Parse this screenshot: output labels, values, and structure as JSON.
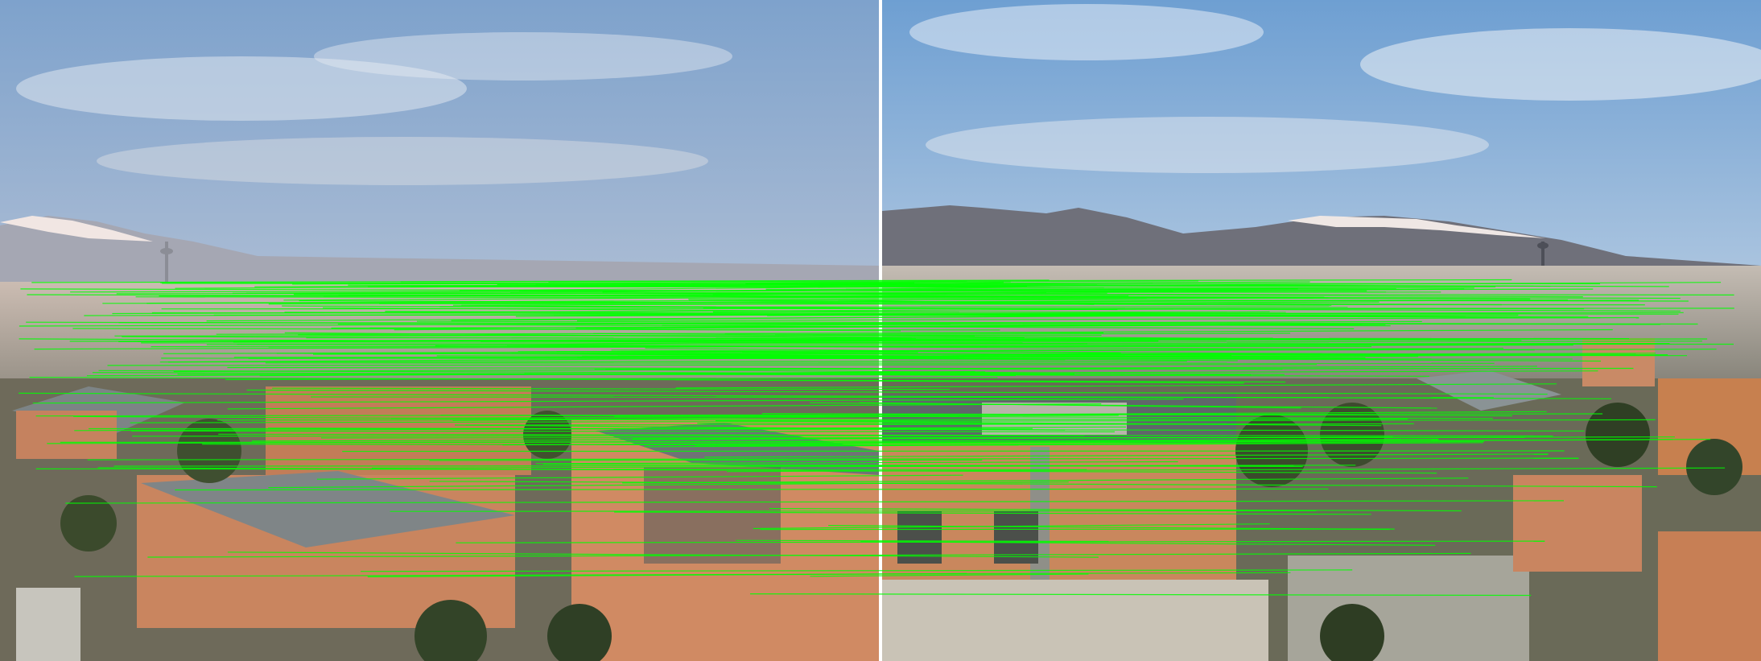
{
  "scene": {
    "description_visible": false,
    "panels": [
      {
        "id": "left-photo",
        "sky_top": "#7fa3cc",
        "sky_bottom": "#d9cec8",
        "mountain": "#9aa0ad",
        "snow": "#f3e9e6",
        "city": "#bdb3ab",
        "building": "#c9835e",
        "roof": "#7d8487"
      },
      {
        "id": "right-photo",
        "sky_top": "#6f9fd1",
        "sky_bottom": "#e3e8ee",
        "mountain": "#6e6f78",
        "snow": "#efe8e6",
        "city": "#b8b0a8",
        "building": "#c77d55",
        "roof": "#6f7679"
      }
    ],
    "match_line_color": "#00ff00",
    "match_count": 220
  }
}
